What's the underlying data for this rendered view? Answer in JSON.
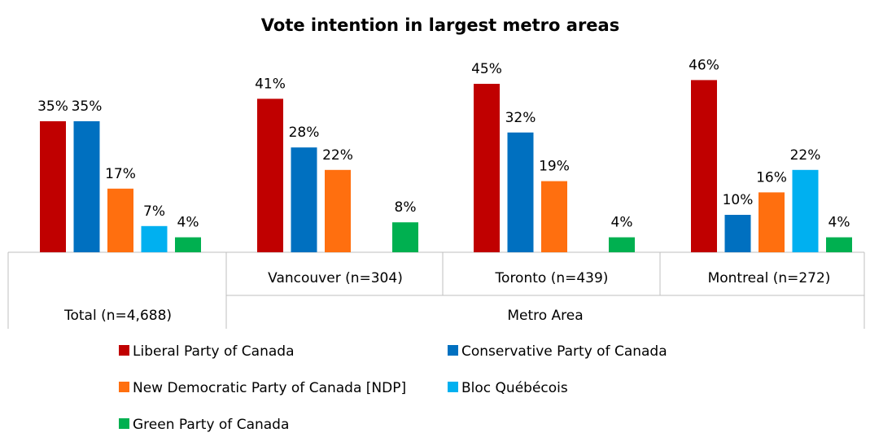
{
  "chart_data": {
    "type": "bar",
    "title": "Vote intention in largest metro areas",
    "categories": [
      "Total (n=4,688)",
      "Vancouver (n=304)",
      "Toronto (n=439)",
      "Montreal (n=272)"
    ],
    "group_header": "Metro Area",
    "series": [
      {
        "name": "Liberal Party of Canada",
        "color": "#C00000",
        "values": [
          35,
          41,
          45,
          46
        ]
      },
      {
        "name": "Conservative Party of Canada",
        "color": "#0070C0",
        "values": [
          35,
          28,
          32,
          10
        ]
      },
      {
        "name": "New Democratic Party of Canada [NDP]",
        "color": "#FF6F0F",
        "values": [
          17,
          22,
          19,
          16
        ]
      },
      {
        "name": "Bloc Québécois",
        "color": "#00B0F0",
        "values": [
          7,
          null,
          null,
          22
        ]
      },
      {
        "name": "Green Party of Canada",
        "color": "#00B050",
        "values": [
          4,
          8,
          4,
          4
        ]
      }
    ],
    "value_suffix": "%",
    "legend_position": "bottom",
    "grid": false
  }
}
